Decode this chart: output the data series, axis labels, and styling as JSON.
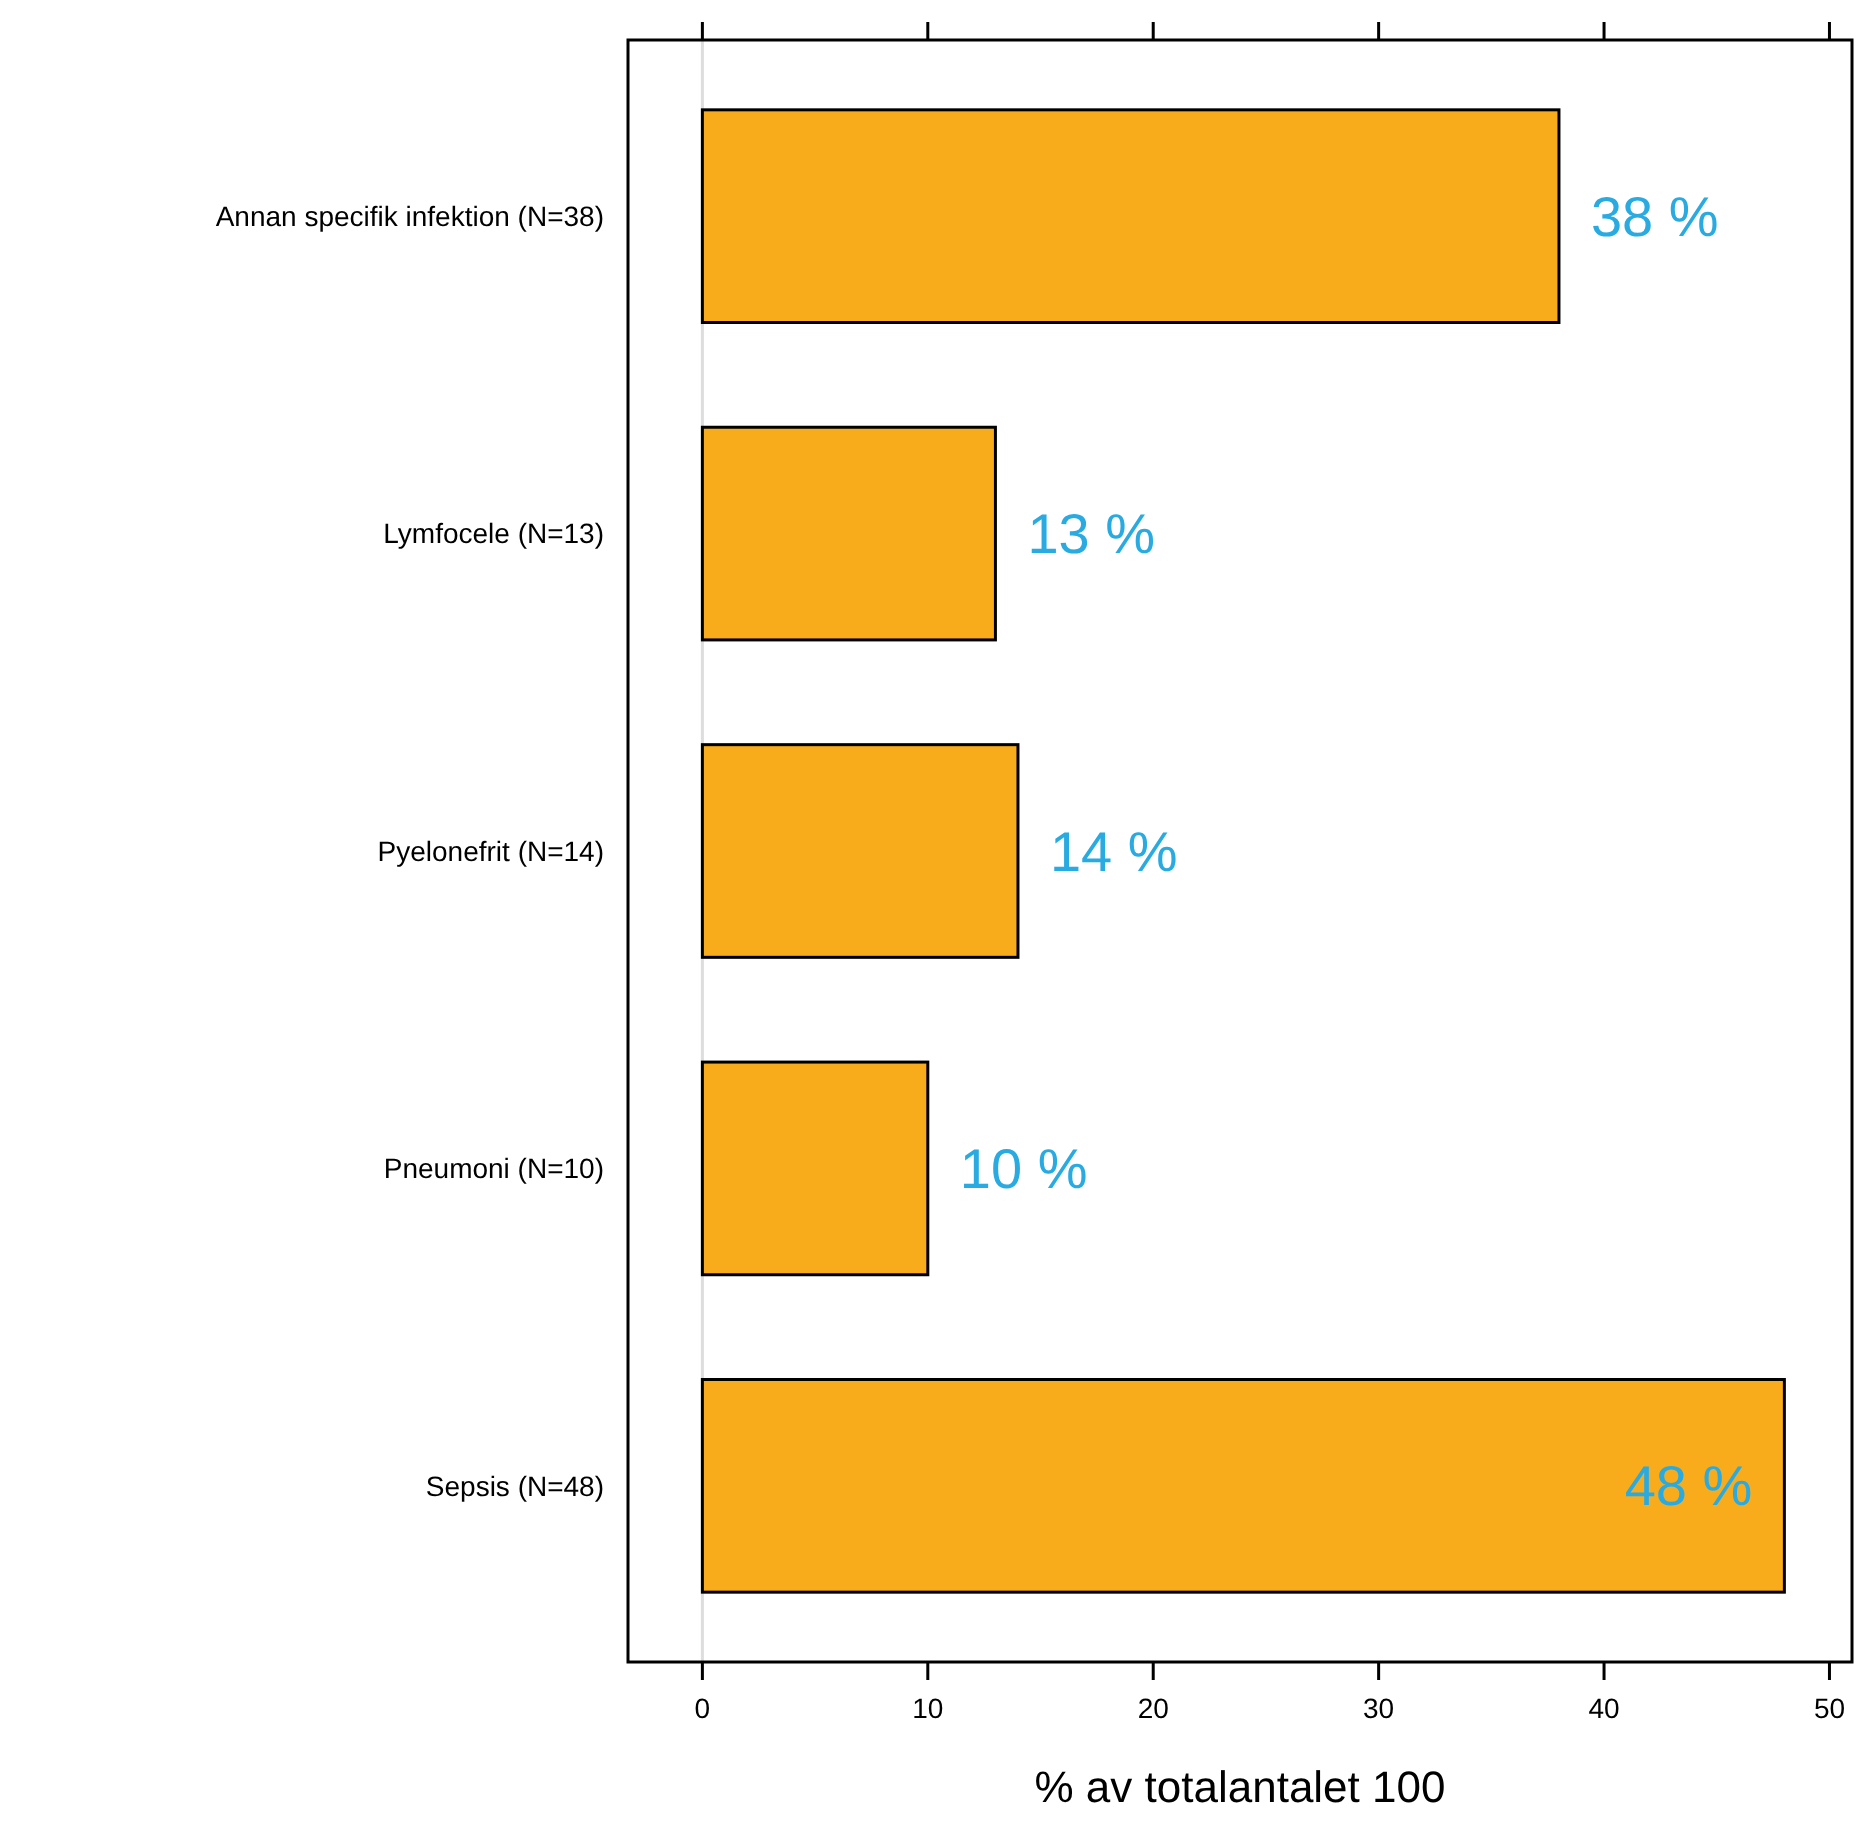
{
  "chart_data": {
    "type": "bar",
    "orientation": "horizontal",
    "xlabel": "% av totalantalet 100",
    "categories": [
      "Annan specifik infektion (N=38)",
      "Lymfocele (N=13)",
      "Pyelonefrit (N=14)",
      "Pneumoni (N=10)",
      "Sepsis (N=48)"
    ],
    "values": [
      38,
      13,
      14,
      10,
      48
    ],
    "color": "#f8ac1c",
    "value_labels": [
      "38 %",
      "13 %",
      "14 %",
      "10 %",
      "48 %"
    ],
    "xlim": [
      -3.3,
      51
    ],
    "xticks": [
      0,
      10,
      20,
      30,
      40,
      50
    ],
    "grid": false,
    "ref_lines": [
      {
        "axis": "x",
        "value": 0,
        "color": "#dddddd"
      }
    ]
  }
}
